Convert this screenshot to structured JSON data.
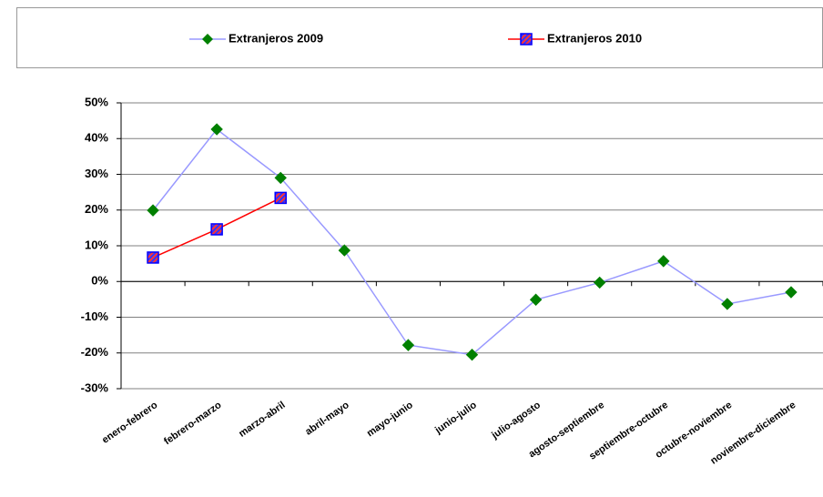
{
  "chart_data": {
    "type": "line",
    "categories": [
      "enero-febrero",
      "febrero-marzo",
      "marzo-abril",
      "abril-mayo",
      "mayo-junio",
      "junio-julio",
      "julio-agosto",
      "agosto-septiembre",
      "septiembre-octubre",
      "octubre-noviembre",
      "noviembre-diciembre"
    ],
    "series": [
      {
        "name": "Extranjeros 2009",
        "color": "#9999ff",
        "marker_color": "#008000",
        "values": [
          19.9,
          42.6,
          29,
          8.7,
          -17.8,
          -20.5,
          -5.1,
          -0.3,
          5.7,
          -6.3,
          -3
        ]
      },
      {
        "name": "Extranjeros 2010",
        "color": "#ff0000",
        "marker_color": "#0000ff",
        "values": [
          6.7,
          14.6,
          23.4,
          null,
          null,
          null,
          null,
          null,
          null,
          null,
          null
        ]
      }
    ],
    "ylim": [
      -30,
      50
    ],
    "yticks": [
      {
        "value": -30,
        "label": "-30%"
      },
      {
        "value": -20,
        "label": "-20%"
      },
      {
        "value": -10,
        "label": "-10%"
      },
      {
        "value": 0,
        "label": "0%"
      },
      {
        "value": 10,
        "label": "10%"
      },
      {
        "value": 20,
        "label": "20%"
      },
      {
        "value": 30,
        "label": "30%"
      },
      {
        "value": 40,
        "label": "40%"
      },
      {
        "value": 50,
        "label": "50%"
      }
    ],
    "grid": true,
    "legend": "top"
  }
}
